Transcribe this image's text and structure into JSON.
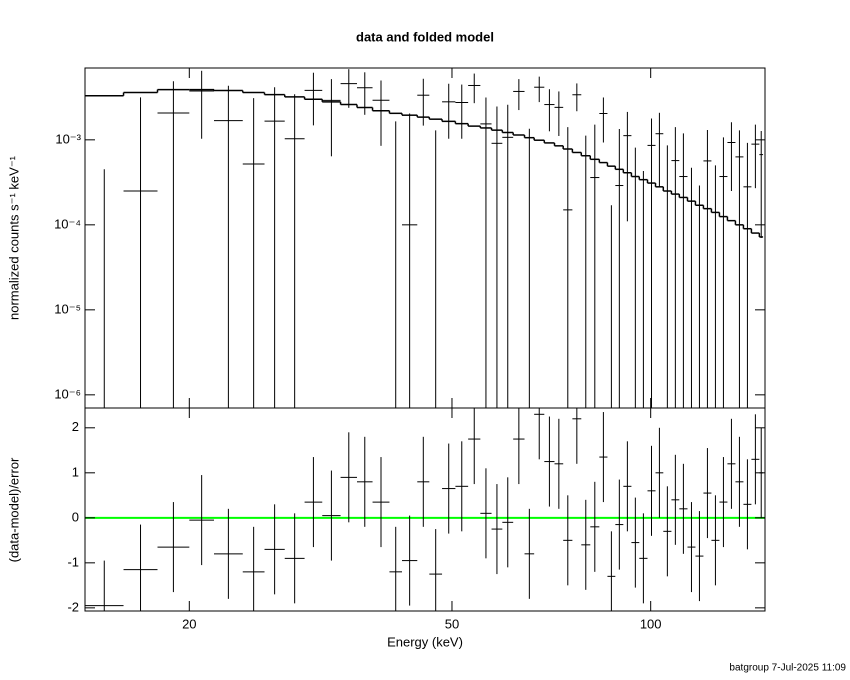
{
  "chart_data": [
    {
      "type": "scatter",
      "title": "data and folded model",
      "ylabel": "normalized counts s⁻¹ keV⁻¹",
      "xscale": "log",
      "yscale": "log",
      "xlim": [
        13.9,
        149
      ],
      "xticks": [
        20,
        50,
        100
      ],
      "ylim": [
        7e-07,
        0.007
      ],
      "yticks": [
        {
          "value": 1e-06,
          "label": "10⁻⁶"
        },
        {
          "value": 1e-05,
          "label": "10⁻⁵"
        },
        {
          "value": 0.0001,
          "label": "10⁻⁴"
        },
        {
          "value": 0.001,
          "label": "10⁻³"
        }
      ],
      "bins": [
        13.9,
        15.9,
        17.9,
        20,
        21.8,
        24.1,
        26.0,
        27.9,
        29.9,
        31.8,
        33.9,
        35.9,
        37.9,
        40.2,
        42.0,
        44.3,
        46.2,
        48.3,
        50.6,
        52.9,
        55.2,
        57.4,
        59.6,
        61.9,
        64.4,
        66.6,
        69.0,
        71.5,
        73.7,
        76.1,
        78.5,
        81.0,
        83.6,
        86.0,
        88.4,
        90.9,
        93.5,
        96.1,
        98.9,
        101.7,
        104.5,
        107.5,
        110.5,
        113.7,
        116.9,
        120.2,
        123.6,
        127.1,
        130.7,
        134.4,
        138.2,
        142.1,
        146.1,
        148
      ],
      "series": [
        {
          "style": "crosses",
          "color": "#000000",
          "values": [
            -0.00255,
            0.00025,
            0.00207,
            0.00376,
            0.00168,
            0.00052,
            0.00166,
            0.00103,
            0.00382,
            0.00291,
            0.00458,
            0.0041,
            0.00292,
            -0.00035,
            0.0001,
            0.00335,
            -0.00054,
            0.0028,
            0.00275,
            0.00436,
            0.00154,
            0.00091,
            0.00107,
            0.00371,
            -8e-05,
            0.00416,
            0.0026,
            0.00241,
            0.00015,
            0.00339,
            -6e-05,
            0.00036,
            0.00204,
            -0.00091,
            0.00029,
            0.00112,
            -0.00017,
            -0.00052,
            0.00086,
            0.00118,
            -1e-05,
            0.00057,
            0.00037,
            -0.00032,
            -0.00048,
            0.000565,
            -0.00022,
            0.00037,
            0.00093,
            0.00063,
            0.00028,
            0.00089,
            0.00067
          ],
          "errors": [
            0.003,
            0.00291,
            0.00282,
            0.00273,
            0.00265,
            0.00257,
            0.00249,
            0.00241,
            0.00234,
            0.00227,
            0.0022,
            0.00213,
            0.00207,
            0.002,
            0.00194,
            0.00188,
            0.00183,
            0.00177,
            0.00172,
            0.00166,
            0.00161,
            0.00156,
            0.00152,
            0.00147,
            0.00143,
            0.00138,
            0.00134,
            0.0013,
            0.00126,
            0.00122,
            0.00118,
            0.00115,
            0.00111,
            0.00108,
            0.00105,
            0.00101,
            0.00098,
            0.00095,
            0.00092,
            0.0009,
            0.00087,
            0.00084,
            0.00082,
            0.00079,
            0.00077,
            0.00074,
            0.00072,
            0.0007,
            0.00068,
            0.00066,
            0.00064,
            0.00062,
            0.0006
          ]
        },
        {
          "style": "step",
          "color": "#000000",
          "values": [
            0.0033,
            0.0036,
            0.0039,
            0.0039,
            0.0038,
            0.0036,
            0.0034,
            0.0032,
            0.003,
            0.0028,
            0.0026,
            0.0024,
            0.0022,
            0.00205,
            0.00195,
            0.00185,
            0.00175,
            0.00165,
            0.00155,
            0.00145,
            0.00138,
            0.0013,
            0.00122,
            0.00114,
            0.00106,
            0.00099,
            0.00092,
            0.00085,
            0.00078,
            0.00071,
            0.00065,
            0.00059,
            0.00054,
            0.00049,
            0.00045,
            0.00041,
            0.00037,
            0.00034,
            0.00031,
            0.00028,
            0.00025,
            0.00023,
            0.00021,
            0.00019,
            0.00017,
            0.000155,
            0.00014,
            0.000125,
            0.000112,
            0.0001,
            9e-05,
            8e-05,
            7.2e-05
          ]
        }
      ]
    },
    {
      "type": "scatter",
      "xlabel": "Energy (keV)",
      "ylabel": "(data-model)/error",
      "ylim": [
        -2.07,
        2.44
      ],
      "yticks": [
        -2,
        -1,
        0,
        1,
        2
      ],
      "reference_line": {
        "value": 0,
        "color": "#00ff00"
      },
      "series": [
        {
          "style": "crosses",
          "color": "#000000",
          "values": [
            -1.95,
            -1.15,
            -0.65,
            -0.05,
            -0.8,
            -1.2,
            -0.7,
            -0.9,
            0.35,
            0.05,
            0.9,
            0.8,
            0.35,
            -1.2,
            -0.95,
            0.8,
            -1.25,
            0.65,
            0.7,
            1.75,
            0.1,
            -0.25,
            -0.1,
            1.75,
            -0.8,
            2.3,
            1.25,
            1.2,
            -0.5,
            2.2,
            -0.6,
            -0.2,
            1.35,
            -1.3,
            -0.15,
            0.7,
            -0.55,
            -0.9,
            0.6,
            1.0,
            -0.3,
            0.4,
            0.2,
            -0.65,
            -0.85,
            0.55,
            -0.5,
            0.35,
            1.2,
            0.8,
            0.3,
            1.3,
            1.0
          ],
          "errors": [
            1,
            1,
            1,
            1,
            1,
            1,
            1,
            1,
            1,
            1,
            1,
            1,
            1,
            1,
            1,
            1,
            1,
            1,
            1,
            1,
            1,
            1,
            1,
            1,
            1,
            1,
            1,
            1,
            1,
            1,
            1,
            1,
            1,
            1,
            1,
            1,
            1,
            1,
            1,
            1,
            1,
            1,
            1,
            1,
            1,
            1,
            1,
            1,
            1,
            1,
            1,
            1,
            1
          ]
        }
      ],
      "annotation": "batgroup  7-Jul-2025 11:09"
    }
  ]
}
